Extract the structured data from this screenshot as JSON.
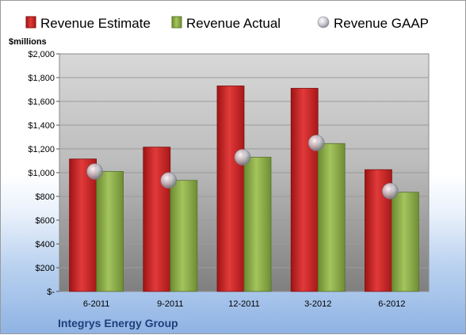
{
  "chart_data": {
    "type": "bar",
    "categories": [
      "6-2011",
      "9-2011",
      "12-2011",
      "3-2012",
      "6-2012"
    ],
    "series": [
      {
        "name": "Revenue Estimate",
        "type": "bar",
        "color": "#d42a2a",
        "values": [
          1115,
          1215,
          1730,
          1710,
          1025
        ]
      },
      {
        "name": "Revenue Actual",
        "type": "bar",
        "color": "#8db04a",
        "values": [
          1010,
          935,
          1130,
          1245,
          835
        ]
      },
      {
        "name": "Revenue GAAP",
        "type": "scatter",
        "color": "#c8c8d0",
        "values": [
          1010,
          935,
          1130,
          1250,
          845
        ]
      }
    ],
    "ylim": [
      0,
      2000
    ],
    "yticks": [
      0,
      200,
      400,
      600,
      800,
      1000,
      1200,
      1400,
      1600,
      1800,
      2000
    ],
    "ytick_labels": [
      "$-",
      "$200",
      "$400",
      "$600",
      "$800",
      "$1,000",
      "$1,200",
      "$1,400",
      "$1,600",
      "$1,800",
      "$2,000"
    ],
    "ylabel": "$millions",
    "grid": true,
    "legend_position": "top"
  },
  "footer": {
    "company": "Integrys Energy Group"
  }
}
